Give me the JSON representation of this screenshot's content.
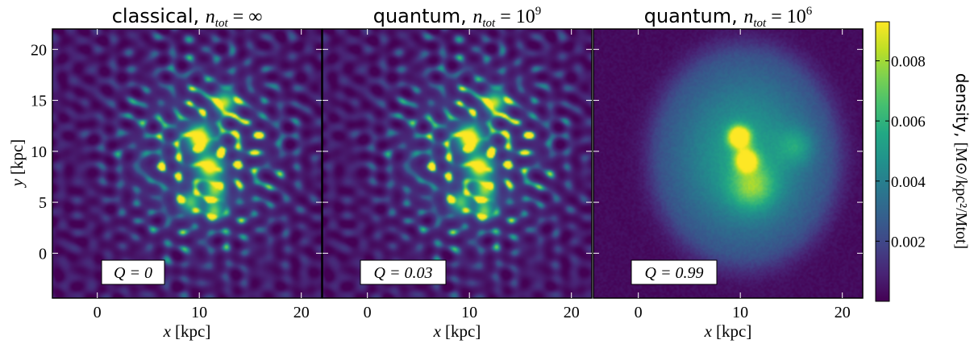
{
  "chart_data": [
    {
      "type": "heatmap",
      "title_word": "classical,",
      "title_math": {
        "var": "n",
        "sub": "tot",
        "rhs": "∞"
      },
      "xlabel_var": "x",
      "xlabel_unit": "[kpc]",
      "ylabel_var": "y",
      "ylabel_unit": "[kpc]",
      "xlim": [
        -4.4,
        22
      ],
      "ylim": [
        -4.4,
        22
      ],
      "xticks": [
        0,
        10,
        20
      ],
      "yticks": [
        0,
        5,
        10,
        15,
        20
      ],
      "annotation": "Q = 0",
      "character": "granular",
      "blobs": [
        [
          10,
          11.3,
          0.8,
          1.0
        ],
        [
          11,
          8.5,
          0.8,
          0.9
        ],
        [
          12.5,
          14.8,
          0.7,
          0.8
        ],
        [
          11.5,
          6.2,
          0.7,
          0.7
        ],
        [
          9.2,
          5,
          0.7,
          0.6
        ],
        [
          11.5,
          4.2,
          0.6,
          0.7
        ]
      ]
    },
    {
      "type": "heatmap",
      "title_word": "quantum,",
      "title_math": {
        "var": "n",
        "sub": "tot",
        "rhs": "10",
        "exp": "9"
      },
      "xlabel_var": "x",
      "xlabel_unit": "[kpc]",
      "xlim": [
        -4.4,
        22
      ],
      "ylim": [
        -4.4,
        22
      ],
      "xticks": [
        0,
        10,
        20
      ],
      "annotation": "Q = 0.03",
      "character": "granular",
      "blobs": [
        [
          10,
          11.3,
          0.8,
          1.0
        ],
        [
          11,
          8.5,
          0.8,
          0.9
        ],
        [
          12.5,
          14.8,
          0.7,
          0.8
        ],
        [
          11.5,
          6.2,
          0.7,
          0.7
        ],
        [
          9.2,
          5,
          0.7,
          0.6
        ],
        [
          11.5,
          4.2,
          0.6,
          0.7
        ]
      ]
    },
    {
      "type": "heatmap",
      "title_word": "quantum,",
      "title_math": {
        "var": "n",
        "sub": "tot",
        "rhs": "10",
        "exp": "6"
      },
      "xlabel_var": "x",
      "xlabel_unit": "[kpc]",
      "xlim": [
        -4.4,
        22
      ],
      "ylim": [
        -4.4,
        22
      ],
      "xticks": [
        0,
        10,
        20
      ],
      "annotation": "Q = 0.99",
      "character": "smooth",
      "blobs": [
        [
          9.9,
          11.4,
          0.7,
          1.0
        ],
        [
          10.6,
          9.1,
          0.7,
          0.85
        ],
        [
          11.2,
          6.5,
          1.5,
          0.35
        ],
        [
          15.5,
          10.5,
          1.2,
          0.2
        ]
      ]
    }
  ],
  "colorbar": {
    "label_word": "density,",
    "label_unit": "[M⊙/kpc²/Mtot]",
    "range": [
      0.0,
      0.0093
    ],
    "ticks": [
      "0.002",
      "0.004",
      "0.006",
      "0.008"
    ],
    "tick_values": [
      0.002,
      0.004,
      0.006,
      0.008
    ],
    "colormap": "viridis"
  }
}
